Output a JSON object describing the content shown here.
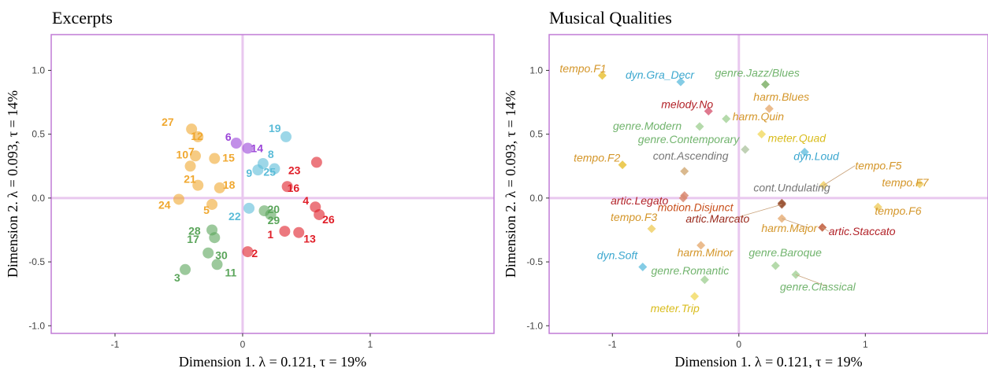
{
  "colors": {
    "frame": "#c07bd6",
    "zeroline": "#e9c8ef",
    "orange": "#f0a830",
    "purple": "#9a44d8",
    "blue": "#5bbcd8",
    "green": "#5aa55a",
    "red": "#e01e28"
  },
  "chart_data": [
    {
      "type": "scatter",
      "title": "Excerpts",
      "xlabel": "Dimension 1.   λ = 0.121,  τ = 19%",
      "ylabel": "Dimension 2.   λ = 0.093,  τ = 14%",
      "xlim": [
        -1.5,
        1.97
      ],
      "ylim": [
        -1.06,
        1.28
      ],
      "xticks": [
        -1,
        0,
        1
      ],
      "xtick_labels": [
        "-1",
        "0",
        "1"
      ],
      "yticks": [
        1.0,
        0.5,
        0.0,
        -0.5,
        -1.0
      ],
      "ytick_labels": [
        "1.0",
        "0.5",
        "0.0",
        "-0.5",
        "-1.0"
      ],
      "grid": false,
      "points": [
        {
          "label": "27",
          "x": -0.4,
          "y": 0.54,
          "color": "orange"
        },
        {
          "label": "12",
          "x": -0.35,
          "y": 0.48,
          "color": "orange"
        },
        {
          "label": "7",
          "x": -0.37,
          "y": 0.33,
          "color": "orange"
        },
        {
          "label": "15",
          "x": -0.22,
          "y": 0.31,
          "color": "orange"
        },
        {
          "label": "10",
          "x": -0.41,
          "y": 0.25,
          "color": "orange"
        },
        {
          "label": "21",
          "x": -0.35,
          "y": 0.1,
          "color": "orange"
        },
        {
          "label": "18",
          "x": -0.18,
          "y": 0.08,
          "color": "orange"
        },
        {
          "label": "24",
          "x": -0.5,
          "y": -0.01,
          "color": "orange"
        },
        {
          "label": "5",
          "x": -0.24,
          "y": -0.05,
          "color": "orange"
        },
        {
          "label": "6",
          "x": -0.05,
          "y": 0.43,
          "color": "purple"
        },
        {
          "label": "14",
          "x": 0.04,
          "y": 0.39,
          "color": "purple"
        },
        {
          "label": "19",
          "x": 0.34,
          "y": 0.48,
          "color": "blue"
        },
        {
          "label": "8",
          "x": 0.16,
          "y": 0.27,
          "color": "blue"
        },
        {
          "label": "9",
          "x": 0.12,
          "y": 0.22,
          "color": "blue"
        },
        {
          "label": "25",
          "x": 0.25,
          "y": 0.23,
          "color": "blue"
        },
        {
          "label": "22",
          "x": 0.05,
          "y": -0.08,
          "color": "blue"
        },
        {
          "label": "23",
          "x": 0.58,
          "y": 0.28,
          "color": "red"
        },
        {
          "label": "16",
          "x": 0.35,
          "y": 0.09,
          "color": "red"
        },
        {
          "label": "4",
          "x": 0.57,
          "y": -0.07,
          "color": "red"
        },
        {
          "label": "26",
          "x": 0.6,
          "y": -0.13,
          "color": "red"
        },
        {
          "label": "1",
          "x": 0.33,
          "y": -0.26,
          "color": "red"
        },
        {
          "label": "13",
          "x": 0.44,
          "y": -0.27,
          "color": "red"
        },
        {
          "label": "2",
          "x": 0.04,
          "y": -0.42,
          "color": "red"
        },
        {
          "label": "20",
          "x": 0.17,
          "y": -0.1,
          "color": "green"
        },
        {
          "label": "29",
          "x": 0.22,
          "y": -0.13,
          "color": "green"
        },
        {
          "label": "28",
          "x": -0.24,
          "y": -0.25,
          "color": "green"
        },
        {
          "label": "17",
          "x": -0.22,
          "y": -0.31,
          "color": "green"
        },
        {
          "label": "30",
          "x": -0.27,
          "y": -0.43,
          "color": "green"
        },
        {
          "label": "11",
          "x": -0.2,
          "y": -0.52,
          "color": "green"
        },
        {
          "label": "3",
          "x": -0.45,
          "y": -0.56,
          "color": "green"
        }
      ]
    },
    {
      "type": "scatter",
      "title": "Musical Qualities",
      "xlabel": "Dimension 1.   λ = 0.121,  τ = 19%",
      "ylabel": "Dimension 2.   λ = 0.093,  τ = 14%",
      "xlim": [
        -1.5,
        1.97
      ],
      "ylim": [
        -1.06,
        1.28
      ],
      "xticks": [
        -1,
        0,
        1
      ],
      "xtick_labels": [
        "-1",
        "0",
        "1"
      ],
      "yticks": [
        1.0,
        0.5,
        0.0,
        -0.5,
        -1.0
      ],
      "ytick_labels": [
        "1.0",
        "0.5",
        "0.0",
        "-0.5",
        "-1.0"
      ],
      "grid": false,
      "points": [
        {
          "label": "tempo.F1",
          "x": -1.08,
          "y": 0.96,
          "color": "#e9c23a",
          "text": "#d4962a"
        },
        {
          "label": "dyn.Gra_Decr",
          "x": -0.46,
          "y": 0.91,
          "color": "#6fc3e0",
          "text": "#3ba7cf"
        },
        {
          "label": "genre.Jazz/Blues",
          "x": 0.21,
          "y": 0.89,
          "color": "#7fb06a",
          "text": "#72b46e"
        },
        {
          "label": "harm.Blues",
          "x": 0.24,
          "y": 0.7,
          "color": "#e8b07a",
          "text": "#d4962a"
        },
        {
          "label": "melody.No",
          "x": -0.24,
          "y": 0.68,
          "color": "#d9627a",
          "text": "#b22228"
        },
        {
          "label": "harm.Quin",
          "x": -0.1,
          "y": 0.62,
          "color": "#a8d39c",
          "text": "#d4962a"
        },
        {
          "label": "genre.Modern",
          "x": -0.31,
          "y": 0.56,
          "color": "#a8d39c",
          "text": "#72b46e"
        },
        {
          "label": "meter.Quad",
          "x": 0.18,
          "y": 0.5,
          "color": "#f2dc6a",
          "text": "#d9bc1c"
        },
        {
          "label": "genre.Contemporary",
          "x": 0.05,
          "y": 0.38,
          "color": "#b5c9a8",
          "text": "#72b46e"
        },
        {
          "label": "dyn.Loud",
          "x": 0.52,
          "y": 0.36,
          "color": "#6fc3e0",
          "text": "#3ba7cf"
        },
        {
          "label": "tempo.F2",
          "x": -0.92,
          "y": 0.26,
          "color": "#e9c23a",
          "text": "#d4962a"
        },
        {
          "label": "cont.Ascending",
          "x": -0.43,
          "y": 0.21,
          "color": "#d4ad7a",
          "text": "#777777"
        },
        {
          "label": "motion.Disjunct",
          "x": -0.43,
          "y": 0.02,
          "color": "#d98a72",
          "text": "#c9501c"
        },
        {
          "label": "tempo.F5",
          "x": 0.67,
          "y": 0.1,
          "color": "#f0d06a",
          "text": "#d4962a"
        },
        {
          "label": "tempo.F7",
          "x": 1.43,
          "y": 0.11,
          "color": "#f0d06a",
          "text": "#d4962a"
        },
        {
          "label": "tempo.F6",
          "x": 1.1,
          "y": -0.07,
          "color": "#f0d06a",
          "text": "#d4962a"
        },
        {
          "label": "cont.Undulating",
          "x": 0.34,
          "y": -0.04,
          "color": "#9a5434",
          "text": "#777777"
        },
        {
          "label": "artic.Legato",
          "x": -0.44,
          "y": 0.0,
          "color": "#d98a72",
          "text": "#b22228"
        },
        {
          "label": "artic.Marcato",
          "x": 0.34,
          "y": -0.05,
          "color": "#9a5434",
          "text": "#9a2a1c"
        },
        {
          "label": "harm.Major",
          "x": 0.34,
          "y": -0.16,
          "color": "#e8b07a",
          "text": "#d4962a"
        },
        {
          "label": "artic.Staccato",
          "x": 0.66,
          "y": -0.23,
          "color": "#c05a3a",
          "text": "#b22228"
        },
        {
          "label": "tempo.F3",
          "x": -0.69,
          "y": -0.24,
          "color": "#f0d06a",
          "text": "#d4962a"
        },
        {
          "label": "harm.Minor",
          "x": -0.3,
          "y": -0.37,
          "color": "#e8b07a",
          "text": "#d4962a"
        },
        {
          "label": "genre.Baroque",
          "x": 0.29,
          "y": -0.53,
          "color": "#a8d39c",
          "text": "#72b46e"
        },
        {
          "label": "dyn.Soft",
          "x": -0.76,
          "y": -0.54,
          "color": "#6fc3e0",
          "text": "#3ba7cf"
        },
        {
          "label": "genre.Romantic",
          "x": -0.27,
          "y": -0.64,
          "color": "#a8d39c",
          "text": "#72b46e"
        },
        {
          "label": "genre.Classical",
          "x": 0.45,
          "y": -0.6,
          "color": "#a8d39c",
          "text": "#72b46e"
        },
        {
          "label": "meter.Trip",
          "x": -0.35,
          "y": -0.77,
          "color": "#f2dc6a",
          "text": "#d9bc1c"
        }
      ]
    }
  ]
}
